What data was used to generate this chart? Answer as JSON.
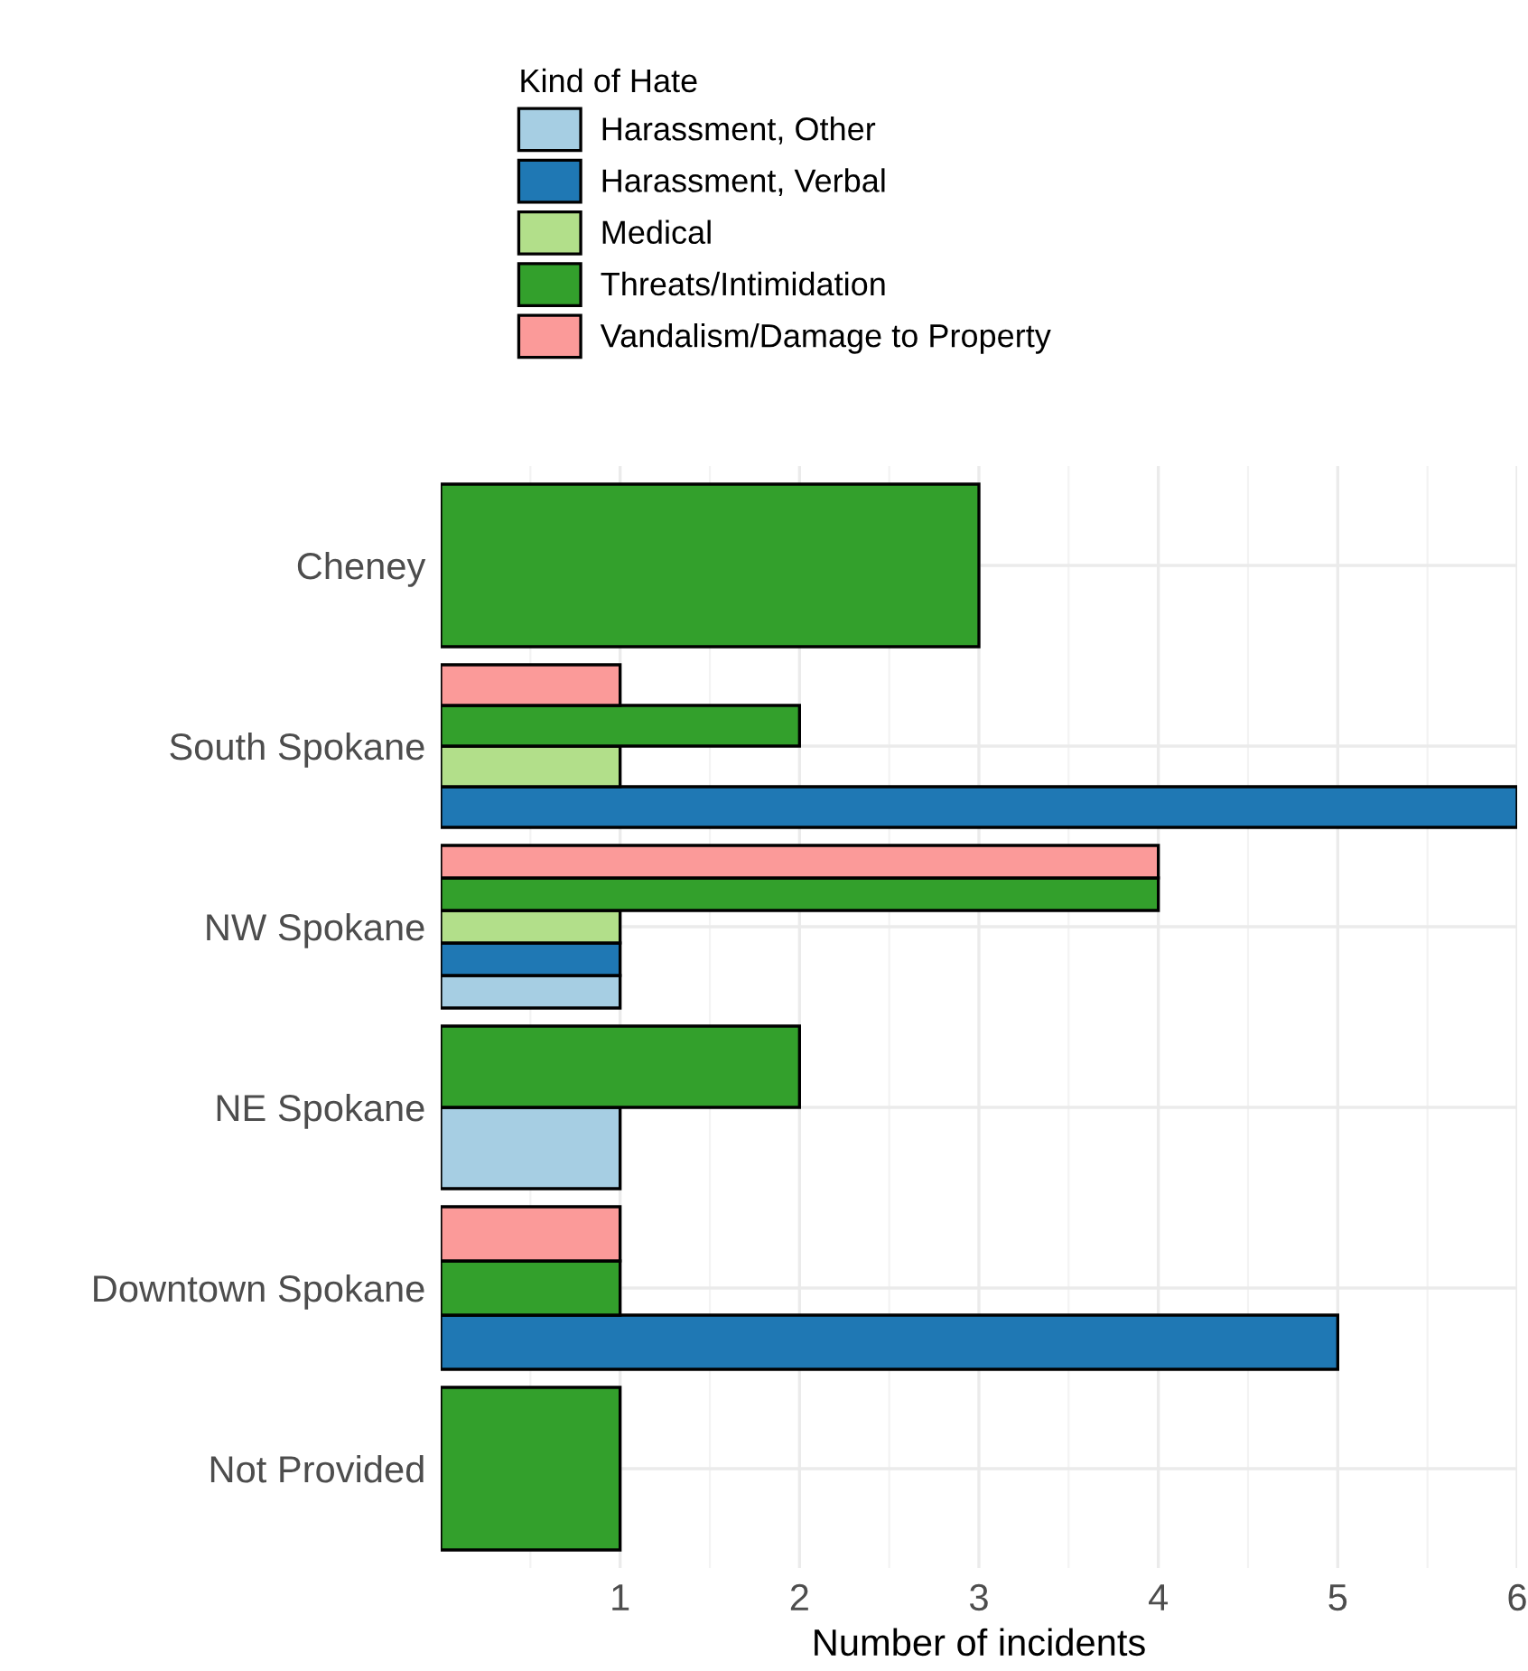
{
  "chart_data": {
    "type": "bar",
    "orientation": "horizontal",
    "xlabel": "Number of incidents",
    "legend_title": "Kind of Hate",
    "legend": "top",
    "categories": [
      "Cheney",
      "South Spokane",
      "NW Spokane",
      "NE Spokane",
      "Downtown Spokane",
      "Not Provided"
    ],
    "series": [
      {
        "name": "Harassment, Other",
        "color": "#a6cee3",
        "values": [
          null,
          null,
          1,
          1,
          null,
          null
        ]
      },
      {
        "name": "Harassment, Verbal",
        "color": "#1f78b4",
        "values": [
          null,
          6,
          1,
          null,
          5,
          null
        ]
      },
      {
        "name": "Medical",
        "color": "#b2df8a",
        "values": [
          null,
          1,
          1,
          null,
          null,
          null
        ]
      },
      {
        "name": "Threats/Intimidation",
        "color": "#33a02c",
        "values": [
          3,
          2,
          4,
          2,
          1,
          1
        ]
      },
      {
        "name": "Vandalism/Damage to Property",
        "color": "#fb9a99",
        "values": [
          null,
          1,
          4,
          null,
          1,
          null
        ]
      }
    ],
    "xlim": [
      0,
      6
    ],
    "xticks": [
      1,
      2,
      3,
      4,
      5,
      6
    ],
    "grid": true
  }
}
